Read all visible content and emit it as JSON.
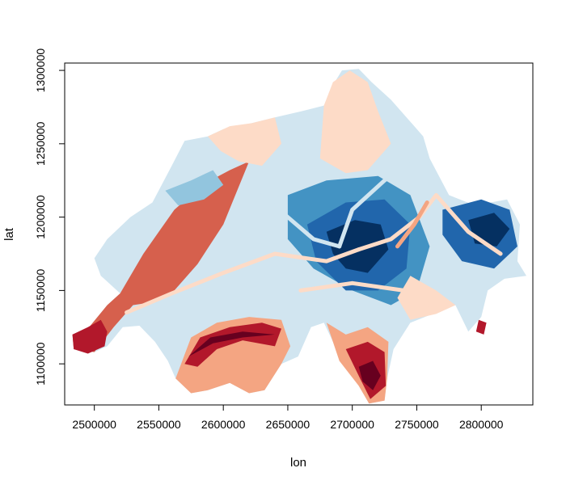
{
  "chart_data": {
    "type": "heatmap",
    "title": "",
    "xlabel": "lon",
    "ylabel": "lat",
    "xlim": [
      2477000,
      2840000
    ],
    "ylim": [
      1072000,
      1305000
    ],
    "x_ticks": [
      2500000,
      2550000,
      2600000,
      2650000,
      2700000,
      2750000,
      2800000
    ],
    "y_ticks": [
      1100000,
      1150000,
      1200000,
      1250000,
      1300000
    ],
    "x_tick_labels": [
      "2500000",
      "2550000",
      "2600000",
      "2650000",
      "2700000",
      "2750000",
      "2800000"
    ],
    "y_tick_labels": [
      "1100000",
      "1150000",
      "1200000",
      "1250000",
      "1300000"
    ],
    "palette": [
      "#67001f",
      "#b2182b",
      "#d6604d",
      "#f4a582",
      "#fddbc7",
      "#d1e5f0",
      "#92c5de",
      "#4393c3",
      "#2166ac",
      "#053061"
    ],
    "outline": [
      [
        2484000,
        1110000
      ],
      [
        2483000,
        1120000
      ],
      [
        2495000,
        1124000
      ],
      [
        2510000,
        1140000
      ],
      [
        2520000,
        1148000
      ],
      [
        2505000,
        1160000
      ],
      [
        2500000,
        1172000
      ],
      [
        2510000,
        1185000
      ],
      [
        2528000,
        1200000
      ],
      [
        2545000,
        1210000
      ],
      [
        2560000,
        1235000
      ],
      [
        2570000,
        1252000
      ],
      [
        2588000,
        1255000
      ],
      [
        2600000,
        1260000
      ],
      [
        2622000,
        1264000
      ],
      [
        2640000,
        1268000
      ],
      [
        2660000,
        1272000
      ],
      [
        2678000,
        1276000
      ],
      [
        2685000,
        1290000
      ],
      [
        2692000,
        1300000
      ],
      [
        2705000,
        1301000
      ],
      [
        2715000,
        1292000
      ],
      [
        2730000,
        1280000
      ],
      [
        2745000,
        1265000
      ],
      [
        2755000,
        1255000
      ],
      [
        2760000,
        1240000
      ],
      [
        2775000,
        1215000
      ],
      [
        2795000,
        1208000
      ],
      [
        2820000,
        1212000
      ],
      [
        2830000,
        1195000
      ],
      [
        2828000,
        1170000
      ],
      [
        2835000,
        1160000
      ],
      [
        2818000,
        1158000
      ],
      [
        2805000,
        1150000
      ],
      [
        2800000,
        1132000
      ],
      [
        2790000,
        1122000
      ],
      [
        2780000,
        1140000
      ],
      [
        2765000,
        1135000
      ],
      [
        2745000,
        1128000
      ],
      [
        2732000,
        1110000
      ],
      [
        2727000,
        1090000
      ],
      [
        2725000,
        1075000
      ],
      [
        2713000,
        1073000
      ],
      [
        2705000,
        1085000
      ],
      [
        2695000,
        1100000
      ],
      [
        2685000,
        1115000
      ],
      [
        2678000,
        1128000
      ],
      [
        2668000,
        1125000
      ],
      [
        2658000,
        1105000
      ],
      [
        2645000,
        1100000
      ],
      [
        2632000,
        1082000
      ],
      [
        2620000,
        1080000
      ],
      [
        2605000,
        1087000
      ],
      [
        2588000,
        1082000
      ],
      [
        2575000,
        1080000
      ],
      [
        2563000,
        1090000
      ],
      [
        2557000,
        1102000
      ],
      [
        2547000,
        1115000
      ],
      [
        2535000,
        1126000
      ],
      [
        2522000,
        1125000
      ],
      [
        2510000,
        1112000
      ],
      [
        2500000,
        1108000
      ]
    ],
    "regions": [
      {
        "value": 2,
        "points": [
          [
            2484000,
            1110000
          ],
          [
            2483000,
            1120000
          ],
          [
            2495000,
            1124000
          ],
          [
            2510000,
            1140000
          ],
          [
            2520000,
            1148000
          ],
          [
            2528000,
            1160000
          ],
          [
            2538000,
            1175000
          ],
          [
            2550000,
            1190000
          ],
          [
            2562000,
            1205000
          ],
          [
            2575000,
            1215000
          ],
          [
            2590000,
            1225000
          ],
          [
            2605000,
            1232000
          ],
          [
            2620000,
            1238000
          ],
          [
            2600000,
            1195000
          ],
          [
            2580000,
            1168000
          ],
          [
            2560000,
            1148000
          ],
          [
            2545000,
            1142000
          ],
          [
            2530000,
            1140000
          ],
          [
            2515000,
            1125000
          ],
          [
            2500000,
            1108000
          ]
        ]
      },
      {
        "value": 1,
        "points": [
          [
            2484000,
            1110000
          ],
          [
            2483000,
            1120000
          ],
          [
            2495000,
            1125000
          ],
          [
            2505000,
            1130000
          ],
          [
            2510000,
            1122000
          ],
          [
            2508000,
            1112000
          ],
          [
            2495000,
            1107000
          ]
        ]
      },
      {
        "value": 4,
        "points": [
          [
            2588000,
            1255000
          ],
          [
            2605000,
            1262000
          ],
          [
            2622000,
            1264000
          ],
          [
            2640000,
            1268000
          ],
          [
            2645000,
            1250000
          ],
          [
            2630000,
            1235000
          ],
          [
            2612000,
            1238000
          ],
          [
            2598000,
            1245000
          ]
        ]
      },
      {
        "value": 4,
        "points": [
          [
            2675000,
            1240000
          ],
          [
            2678000,
            1276000
          ],
          [
            2685000,
            1292000
          ],
          [
            2698000,
            1300000
          ],
          [
            2712000,
            1292000
          ],
          [
            2720000,
            1272000
          ],
          [
            2730000,
            1250000
          ],
          [
            2712000,
            1232000
          ],
          [
            2695000,
            1230000
          ]
        ]
      },
      {
        "value": 6,
        "points": [
          [
            2555000,
            1218000
          ],
          [
            2575000,
            1225000
          ],
          [
            2592000,
            1232000
          ],
          [
            2600000,
            1222000
          ],
          [
            2585000,
            1212000
          ],
          [
            2565000,
            1208000
          ]
        ]
      },
      {
        "value": 7,
        "points": [
          [
            2650000,
            1215000
          ],
          [
            2680000,
            1225000
          ],
          [
            2720000,
            1228000
          ],
          [
            2745000,
            1215000
          ],
          [
            2760000,
            1180000
          ],
          [
            2750000,
            1150000
          ],
          [
            2730000,
            1140000
          ],
          [
            2700000,
            1150000
          ],
          [
            2670000,
            1165000
          ],
          [
            2650000,
            1185000
          ]
        ]
      },
      {
        "value": 8,
        "points": [
          [
            2665000,
            1195000
          ],
          [
            2695000,
            1210000
          ],
          [
            2725000,
            1212000
          ],
          [
            2745000,
            1195000
          ],
          [
            2742000,
            1165000
          ],
          [
            2720000,
            1150000
          ],
          [
            2695000,
            1150000
          ],
          [
            2672000,
            1170000
          ]
        ]
      },
      {
        "value": 9,
        "points": [
          [
            2680000,
            1190000
          ],
          [
            2702000,
            1198000
          ],
          [
            2722000,
            1195000
          ],
          [
            2728000,
            1178000
          ],
          [
            2712000,
            1162000
          ],
          [
            2695000,
            1165000
          ],
          [
            2685000,
            1175000
          ]
        ]
      },
      {
        "value": 8,
        "points": [
          [
            2770000,
            1205000
          ],
          [
            2800000,
            1212000
          ],
          [
            2822000,
            1205000
          ],
          [
            2828000,
            1180000
          ],
          [
            2810000,
            1165000
          ],
          [
            2785000,
            1170000
          ],
          [
            2770000,
            1188000
          ]
        ]
      },
      {
        "value": 9,
        "points": [
          [
            2790000,
            1198000
          ],
          [
            2810000,
            1203000
          ],
          [
            2822000,
            1192000
          ],
          [
            2812000,
            1180000
          ],
          [
            2795000,
            1182000
          ]
        ]
      },
      {
        "value": 3,
        "points": [
          [
            2563000,
            1090000
          ],
          [
            2575000,
            1118000
          ],
          [
            2595000,
            1128000
          ],
          [
            2620000,
            1132000
          ],
          [
            2645000,
            1130000
          ],
          [
            2652000,
            1112000
          ],
          [
            2645000,
            1100000
          ],
          [
            2632000,
            1082000
          ],
          [
            2620000,
            1080000
          ],
          [
            2605000,
            1087000
          ],
          [
            2588000,
            1082000
          ],
          [
            2575000,
            1080000
          ]
        ]
      },
      {
        "value": 1,
        "points": [
          [
            2570000,
            1100000
          ],
          [
            2582000,
            1118000
          ],
          [
            2605000,
            1125000
          ],
          [
            2630000,
            1128000
          ],
          [
            2645000,
            1124000
          ],
          [
            2640000,
            1112000
          ],
          [
            2615000,
            1116000
          ],
          [
            2595000,
            1110000
          ],
          [
            2580000,
            1098000
          ]
        ]
      },
      {
        "value": 0,
        "points": [
          [
            2573000,
            1105000
          ],
          [
            2590000,
            1118000
          ],
          [
            2615000,
            1122000
          ],
          [
            2640000,
            1120000
          ],
          [
            2615000,
            1118000
          ],
          [
            2592000,
            1114000
          ]
        ]
      },
      {
        "value": 3,
        "points": [
          [
            2680000,
            1128000
          ],
          [
            2695000,
            1120000
          ],
          [
            2712000,
            1125000
          ],
          [
            2728000,
            1115000
          ],
          [
            2727000,
            1090000
          ],
          [
            2725000,
            1075000
          ],
          [
            2713000,
            1073000
          ],
          [
            2705000,
            1085000
          ],
          [
            2690000,
            1102000
          ]
        ]
      },
      {
        "value": 1,
        "points": [
          [
            2695000,
            1110000
          ],
          [
            2712000,
            1115000
          ],
          [
            2725000,
            1108000
          ],
          [
            2726000,
            1085000
          ],
          [
            2714000,
            1076000
          ],
          [
            2706000,
            1090000
          ]
        ]
      },
      {
        "value": 0,
        "points": [
          [
            2705000,
            1098000
          ],
          [
            2716000,
            1102000
          ],
          [
            2722000,
            1092000
          ],
          [
            2716000,
            1082000
          ],
          [
            2708000,
            1088000
          ]
        ]
      },
      {
        "value": 4,
        "points": [
          [
            2735000,
            1145000
          ],
          [
            2745000,
            1160000
          ],
          [
            2765000,
            1150000
          ],
          [
            2780000,
            1140000
          ],
          [
            2765000,
            1134000
          ],
          [
            2745000,
            1130000
          ]
        ]
      },
      {
        "value": 1,
        "points": [
          [
            2796000,
            1122000
          ],
          [
            2802000,
            1120000
          ],
          [
            2804000,
            1128000
          ],
          [
            2798000,
            1130000
          ]
        ]
      }
    ],
    "valleys": [
      {
        "value": 4,
        "points": [
          [
            2525000,
            1135000
          ],
          [
            2560000,
            1148000
          ],
          [
            2600000,
            1162000
          ],
          [
            2640000,
            1175000
          ],
          [
            2680000,
            1170000
          ],
          [
            2705000,
            1178000
          ]
        ]
      },
      {
        "value": 4,
        "points": [
          [
            2705000,
            1178000
          ],
          [
            2730000,
            1185000
          ],
          [
            2752000,
            1200000
          ],
          [
            2765000,
            1215000
          ],
          [
            2790000,
            1190000
          ],
          [
            2815000,
            1175000
          ]
        ]
      },
      {
        "value": 4,
        "points": [
          [
            2660000,
            1150000
          ],
          [
            2700000,
            1155000
          ],
          [
            2740000,
            1150000
          ],
          [
            2760000,
            1140000
          ]
        ]
      },
      {
        "value": 3,
        "points": [
          [
            2735000,
            1180000
          ],
          [
            2748000,
            1195000
          ],
          [
            2758000,
            1210000
          ]
        ]
      },
      {
        "value": 5,
        "points": [
          [
            2630000,
            1215000
          ],
          [
            2650000,
            1200000
          ],
          [
            2670000,
            1185000
          ],
          [
            2690000,
            1180000
          ]
        ]
      },
      {
        "value": 5,
        "points": [
          [
            2690000,
            1180000
          ],
          [
            2700000,
            1205000
          ],
          [
            2725000,
            1225000
          ],
          [
            2745000,
            1240000
          ]
        ]
      }
    ]
  }
}
